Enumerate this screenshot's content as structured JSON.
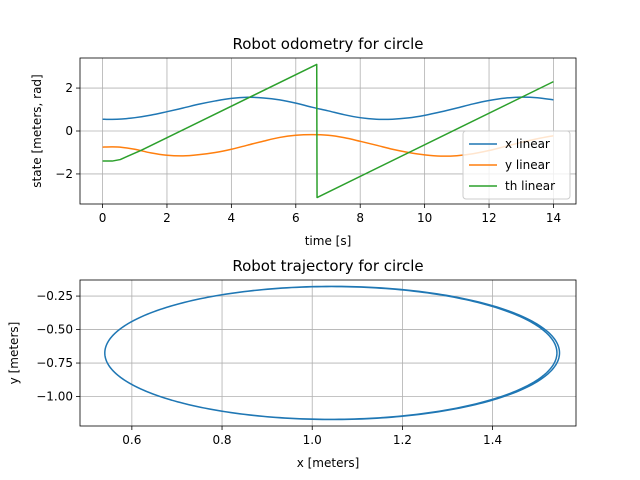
{
  "chart_data": [
    {
      "type": "line",
      "title": "Robot odometry for circle",
      "xlabel": "time [s]",
      "ylabel": "state [meters, rad]",
      "xlim": [
        -0.7,
        14.7
      ],
      "ylim": [
        -3.4,
        3.4
      ],
      "xticks": [
        0,
        2,
        4,
        6,
        8,
        10,
        12,
        14
      ],
      "yticks": [
        -2,
        0,
        2
      ],
      "grid": true,
      "legend_position": "lower-right",
      "series": [
        {
          "name": "x linear",
          "color": "#1f77b4",
          "x": [
            0,
            0.3,
            0.6,
            1,
            1.5,
            2,
            2.5,
            3,
            3.5,
            4,
            4.5,
            5,
            5.5,
            6,
            6.5,
            7,
            7.5,
            8,
            8.5,
            9,
            9.5,
            10,
            10.5,
            11,
            11.5,
            12,
            12.5,
            13,
            13.5,
            14
          ],
          "y": [
            0.55,
            0.54,
            0.56,
            0.62,
            0.74,
            0.9,
            1.07,
            1.25,
            1.4,
            1.52,
            1.57,
            1.54,
            1.45,
            1.3,
            1.11,
            0.94,
            0.76,
            0.62,
            0.55,
            0.55,
            0.61,
            0.73,
            0.89,
            1.07,
            1.26,
            1.42,
            1.53,
            1.58,
            1.55,
            1.45
          ]
        },
        {
          "name": "y linear",
          "color": "#ff7f0e",
          "x": [
            0,
            0.3,
            0.6,
            1,
            1.5,
            2,
            2.5,
            3,
            3.5,
            4,
            4.5,
            5,
            5.5,
            6,
            6.5,
            7,
            7.5,
            8,
            8.5,
            9,
            9.5,
            10,
            10.5,
            11,
            11.5,
            12,
            12.5,
            13,
            13.5,
            14
          ],
          "y": [
            -0.75,
            -0.74,
            -0.76,
            -0.85,
            -1.02,
            -1.13,
            -1.16,
            -1.1,
            -1.0,
            -0.85,
            -0.66,
            -0.47,
            -0.3,
            -0.2,
            -0.17,
            -0.2,
            -0.31,
            -0.48,
            -0.66,
            -0.85,
            -1.0,
            -1.11,
            -1.17,
            -1.15,
            -1.06,
            -0.91,
            -0.72,
            -0.53,
            -0.36,
            -0.22
          ]
        },
        {
          "name": "th linear",
          "color": "#2ca02c",
          "x": [
            0,
            0.3,
            0.55,
            0.8,
            1.2,
            6.65,
            6.66,
            14
          ],
          "y": [
            -1.4,
            -1.4,
            -1.33,
            -1.16,
            -0.9,
            3.1,
            -3.1,
            2.3
          ]
        }
      ]
    },
    {
      "type": "line",
      "title": "Robot trajectory for circle",
      "xlabel": "x [meters]",
      "ylabel": "y [meters]",
      "xlim": [
        0.485,
        1.585
      ],
      "ylim": [
        -1.22,
        -0.13
      ],
      "xticks": [
        0.6,
        0.8,
        1.0,
        1.2,
        1.4
      ],
      "ytick_labels": [
        "−0.25",
        "−0.50",
        "−0.75",
        "−1.00"
      ],
      "yticks": [
        -0.25,
        -0.5,
        -0.75,
        -1.0
      ],
      "grid": true,
      "series": [
        {
          "name": "",
          "color": "#1f77b4",
          "center": [
            1.04,
            -0.675
          ],
          "radius_x": 0.5,
          "radius_y": 0.495,
          "start": [
            0.535,
            -0.755
          ],
          "loops": 2.1
        }
      ]
    }
  ]
}
